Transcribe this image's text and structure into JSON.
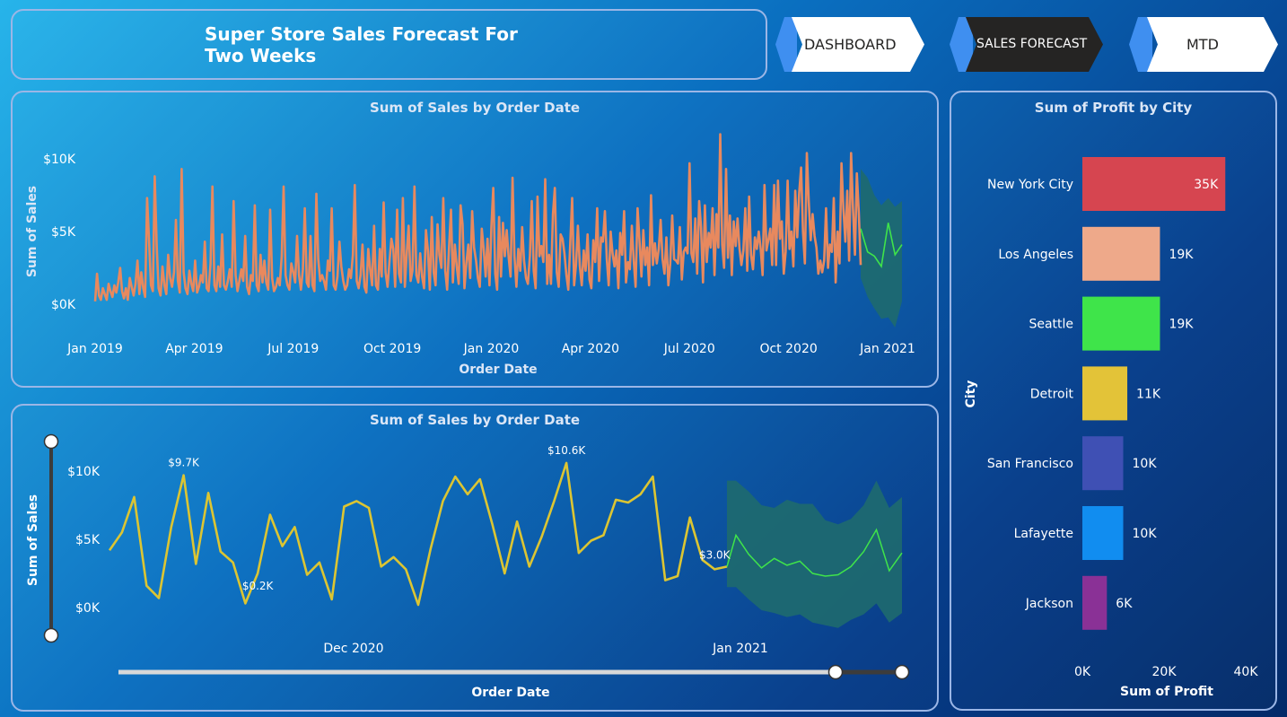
{
  "page_title": "Super Store Sales Forecast For Two Weeks",
  "nav": {
    "dashboard": "DASHBOARD",
    "sales_forecast": "SALES FORECAST",
    "mtd": "MTD"
  },
  "colors": {
    "accent_blue": "#3f8ff0",
    "active_dark": "#252423",
    "sales_line": "#e8895e",
    "zoom_line": "#dcc532",
    "forecast_line": "#3fe44a",
    "forecast_band": "#1e6a6e"
  },
  "chart_data": [
    {
      "type": "line",
      "title": "Sum of Sales by Order Date",
      "xlabel": "Order Date",
      "ylabel": "Sum of Sales",
      "x_tick_labels": [
        "Jan 2019",
        "Apr 2019",
        "Jul 2019",
        "Oct 2019",
        "Jan 2020",
        "Apr 2020",
        "Jul 2020",
        "Oct 2020",
        "Jan 2021"
      ],
      "y_tick_labels": [
        "$0K",
        "$5K",
        "$10K"
      ],
      "y_ticks": [
        0,
        5000,
        10000
      ],
      "ylim": [
        0,
        11000
      ],
      "series": [
        {
          "values": [
            200,
            2100,
            600,
            300,
            1100,
            700,
            300,
            1400,
            900,
            500,
            1300,
            800,
            1500,
            2500,
            900,
            400,
            1100,
            300,
            1800,
            1200,
            600,
            1400,
            3000,
            700,
            2200,
            1100,
            500,
            7300,
            4500,
            1300,
            900,
            8800,
            4000,
            1100,
            600,
            2600,
            1300,
            700,
            3400,
            1800,
            1200,
            2200,
            5800,
            1600,
            800,
            9300,
            2200,
            1100,
            700,
            2300,
            1400,
            900,
            3000,
            800,
            1200,
            2000,
            1500,
            4300,
            1100,
            900,
            2800,
            8100,
            1300,
            900,
            2600,
            1200,
            4800,
            1300,
            1000,
            1600,
            2400,
            1200,
            7100,
            2000,
            900,
            1600,
            2400,
            1600,
            4700,
            1200,
            700,
            2000,
            1600,
            6800,
            1300,
            900,
            3400,
            1500,
            3000,
            1500,
            1000,
            6500,
            1800,
            900,
            1200,
            1800,
            1300,
            3300,
            8100,
            2000,
            1300,
            1000,
            2800,
            2200,
            1500,
            4700,
            2000,
            1000,
            2400,
            6600,
            1500,
            1200,
            4700,
            1300,
            900,
            7600,
            3100,
            1600,
            2000,
            1600,
            1000,
            3000,
            2300,
            6600,
            1300,
            1000,
            1900,
            4300,
            2600,
            1600,
            1000,
            1300,
            2400,
            1800,
            3400,
            8200,
            1600,
            1100,
            2000,
            4100,
            1200,
            800,
            3800,
            2400,
            1300,
            5400,
            1300,
            1000,
            3800,
            1900,
            7000,
            2200,
            1200,
            2900,
            4500,
            3800,
            1200,
            6500,
            2100,
            1500,
            7300,
            1200,
            3500,
            5400,
            1600,
            2300,
            8100,
            2000,
            1500,
            3500,
            1900,
            1100,
            5100,
            3700,
            1000,
            6000,
            2200,
            1300,
            5500,
            3400,
            2500,
            7300,
            2300,
            1000,
            4000,
            6500,
            1500,
            4100,
            2600,
            1400,
            6800,
            5500,
            1100,
            2800,
            4100,
            1800,
            6400,
            3900,
            3000,
            1800,
            1200,
            5200,
            3800,
            1900,
            4500,
            1300,
            5300,
            8000,
            2100,
            1000,
            6000,
            1900,
            5600,
            3300,
            5100,
            3200,
            1900,
            8700,
            3300,
            1200,
            3800,
            2300,
            5300,
            3000,
            1800,
            1400,
            3300,
            7100,
            2300,
            1100,
            7400,
            3300,
            4000,
            2900,
            8600,
            1400,
            3400,
            1400,
            6200,
            8000,
            2200,
            1200,
            4800,
            4500,
            3500,
            2000,
            1000,
            4200,
            7300,
            1300,
            2700,
            5400,
            2600,
            1300,
            3700,
            2300,
            4800,
            1700,
            1100,
            4400,
            2900,
            6600,
            1600,
            4600,
            4300,
            6400,
            3100,
            1300,
            5000,
            3500,
            2600,
            3700,
            1100,
            4900,
            3400,
            6400,
            1500,
            2900,
            2400,
            5400,
            3000,
            1200,
            6600,
            4400,
            1900,
            5100,
            2700,
            3900,
            1300,
            7500,
            2700,
            4200,
            2800,
            3800,
            5800,
            3100,
            2100,
            4600,
            1300,
            2800,
            6100,
            3100,
            3000,
            2800,
            5300,
            1700,
            3600,
            3900,
            3500,
            9700,
            3500,
            2900,
            5900,
            2100,
            7100,
            5300,
            1500,
            6800,
            2900,
            4900,
            3900,
            6600,
            2000,
            6200,
            3900,
            11700,
            4100,
            2500,
            9300,
            3200,
            6100,
            2000,
            5700,
            4000,
            5900,
            3800,
            2700,
            3700,
            6600,
            2300,
            7400,
            3400,
            2400,
            4600,
            3800,
            5000,
            3800,
            2000,
            8200,
            3700,
            4400,
            5200,
            2700,
            8200,
            2700,
            8500,
            4500,
            5700,
            2100,
            3600,
            8500,
            3800,
            5000,
            2600,
            7800,
            4600,
            7600,
            9400,
            5000,
            2800,
            10400,
            7100,
            4400,
            6200,
            4700,
            3900,
            2100,
            3000,
            2200,
            3000,
            6600,
            2500,
            4100,
            3600,
            7300,
            1500,
            5000,
            2800,
            9700,
            6600,
            4300,
            7800,
            3000,
            10400,
            6600,
            3400,
            9000,
            6300,
            2700
          ]
        }
      ],
      "forecast": {
        "values": [
          5200,
          3600,
          3300,
          2600,
          5600,
          3400,
          4100
        ],
        "upper": [
          9300,
          8700,
          7500,
          6800,
          7300,
          6700,
          7100
        ],
        "lower": [
          1800,
          500,
          -300,
          -1000,
          -900,
          -1600,
          200
        ]
      }
    },
    {
      "type": "line",
      "title": "Sum of Sales by Order Date",
      "xlabel": "Order Date",
      "ylabel": "Sum of Sales",
      "x_tick_labels": [
        "Dec 2020",
        "Jan 2021"
      ],
      "y_tick_labels": [
        "$0K",
        "$5K",
        "$10K"
      ],
      "y_ticks": [
        0,
        5000,
        10000
      ],
      "ylim": [
        0,
        11000
      ],
      "annotations": [
        "$9.7K",
        "$0.2K",
        "$10.6K",
        "$3.0K"
      ],
      "series": [
        {
          "values": [
            4200,
            5500,
            8100,
            1600,
            700,
            5900,
            9700,
            3200,
            8400,
            4100,
            3300,
            300,
            2500,
            6800,
            4500,
            5900,
            2400,
            3300,
            600,
            7400,
            7800,
            7300,
            3000,
            3700,
            2800,
            200,
            4300,
            7800,
            9600,
            8300,
            9400,
            6100,
            2500,
            6300,
            3000,
            5200,
            7800,
            10600,
            4000,
            4900,
            5300,
            7900,
            7700,
            8300,
            9600,
            2000,
            2300,
            6600,
            3500,
            2800,
            3000
          ]
        }
      ],
      "forecast": {
        "values": [
          5300,
          3900,
          2900,
          3600,
          3100,
          3400,
          2500,
          2300,
          2400,
          3000,
          4100,
          5700,
          2700,
          4000
        ],
        "upper": [
          9300,
          8500,
          7500,
          7300,
          7900,
          7600,
          7600,
          6400,
          6100,
          6500,
          7500,
          9300,
          7300,
          8100
        ],
        "lower": [
          1500,
          600,
          -200,
          -400,
          -700,
          -500,
          -1100,
          -1300,
          -1500,
          -900,
          -500,
          300,
          -1100,
          -400
        ]
      }
    },
    {
      "type": "bar",
      "orientation": "horizontal",
      "title": "Sum of Profit by City",
      "xlabel": "Sum of Profit",
      "ylabel": "City",
      "x_tick_labels": [
        "0K",
        "20K",
        "40K"
      ],
      "x_ticks": [
        0,
        20000,
        40000
      ],
      "xlim": [
        0,
        40000
      ],
      "categories": [
        "New York City",
        "Los Angeles",
        "Seattle",
        "Detroit",
        "San Francisco",
        "Lafayette",
        "Jackson"
      ],
      "values": [
        35000,
        19000,
        19000,
        11000,
        10000,
        10000,
        6000
      ],
      "value_labels": [
        "35K",
        "19K",
        "19K",
        "11K",
        "10K",
        "10K",
        "6K"
      ],
      "bar_colors": [
        "#d64550",
        "#eea98a",
        "#3fe44a",
        "#e3c338",
        "#3f50b4",
        "#118df0",
        "#8a3196"
      ]
    }
  ]
}
